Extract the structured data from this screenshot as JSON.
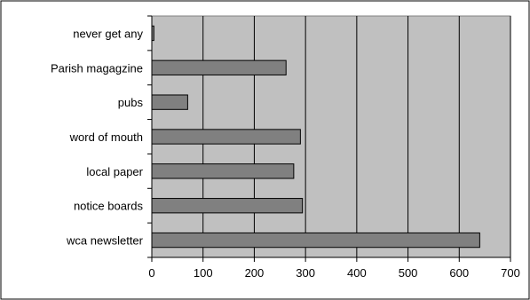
{
  "chart_data": {
    "type": "bar",
    "orientation": "horizontal",
    "categories": [
      "never get any",
      "Parish magagzine",
      "pubs",
      "word of mouth",
      "local paper",
      "notice boards",
      "wca newsletter"
    ],
    "values": [
      4,
      262,
      70,
      290,
      277,
      294,
      640
    ],
    "xlim": [
      0,
      700
    ],
    "xticks": [
      "0",
      "100",
      "200",
      "300",
      "400",
      "500",
      "600",
      "700"
    ],
    "title": "",
    "xlabel": "",
    "ylabel": "",
    "grid": "vertical",
    "legend": "none",
    "colors": {
      "plot_background": "#c0c0c0",
      "bar_fill": "#808080",
      "bar_stroke": "#000000",
      "gridline": "#000000"
    }
  }
}
